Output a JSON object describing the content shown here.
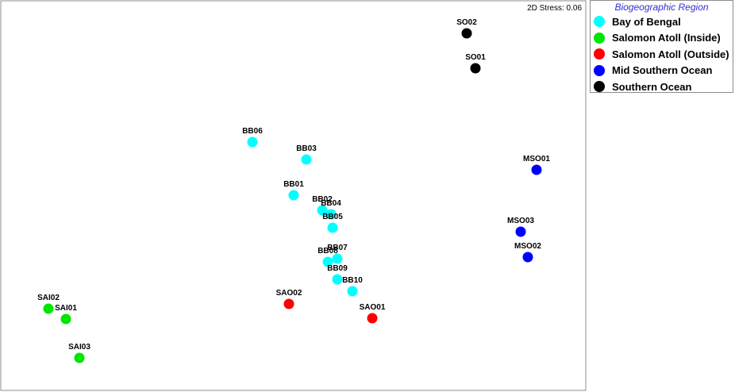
{
  "chart_data": {
    "type": "scatter",
    "title": "",
    "xlabel": "",
    "ylabel": "",
    "annotation": "2D Stress: 0.06",
    "legend": {
      "title": "Biogeographic Region",
      "placement": "top-right"
    },
    "series": [
      {
        "name": "Bay of Bengal",
        "color": "#00ffff",
        "points": [
          {
            "label": "BB06",
            "x": 318,
            "y": -179
          },
          {
            "label": "BB03",
            "x": 386,
            "y": -201
          },
          {
            "label": "BB01",
            "x": 370,
            "y": -246
          },
          {
            "label": "BB02",
            "x": 406,
            "y": -265
          },
          {
            "label": "BB04",
            "x": 417,
            "y": -270
          },
          {
            "label": "BB05",
            "x": 419,
            "y": -287
          },
          {
            "label": "BB07",
            "x": 425,
            "y": -326
          },
          {
            "label": "BB08",
            "x": 413,
            "y": -330
          },
          {
            "label": "BB09",
            "x": 425,
            "y": -352
          },
          {
            "label": "BB10",
            "x": 444,
            "y": -367
          }
        ]
      },
      {
        "name": "Salomon Atoll (Inside)",
        "color": "#00e600",
        "points": [
          {
            "label": "SAI02",
            "x": 61,
            "y": -389
          },
          {
            "label": "SAI01",
            "x": 83,
            "y": -402
          },
          {
            "label": "SAI03",
            "x": 100,
            "y": -451
          }
        ]
      },
      {
        "name": "Salomon Atoll (Outside)",
        "color": "#ff0000",
        "points": [
          {
            "label": "SAO02",
            "x": 364,
            "y": -383
          },
          {
            "label": "SAO01",
            "x": 469,
            "y": -401
          }
        ]
      },
      {
        "name": "Mid Southern Ocean",
        "color": "#0000ff",
        "points": [
          {
            "label": "MSO01",
            "x": 676,
            "y": -214
          },
          {
            "label": "MSO03",
            "x": 656,
            "y": -292
          },
          {
            "label": "MSO02",
            "x": 665,
            "y": -324
          }
        ]
      },
      {
        "name": "Southern Ocean",
        "color": "#000000",
        "points": [
          {
            "label": "SO02",
            "x": 588,
            "y": -42
          },
          {
            "label": "SO01",
            "x": 599,
            "y": -86
          }
        ]
      }
    ],
    "xlim": [
      0,
      738
    ],
    "ylim": [
      -492,
      0
    ],
    "grid": false
  }
}
